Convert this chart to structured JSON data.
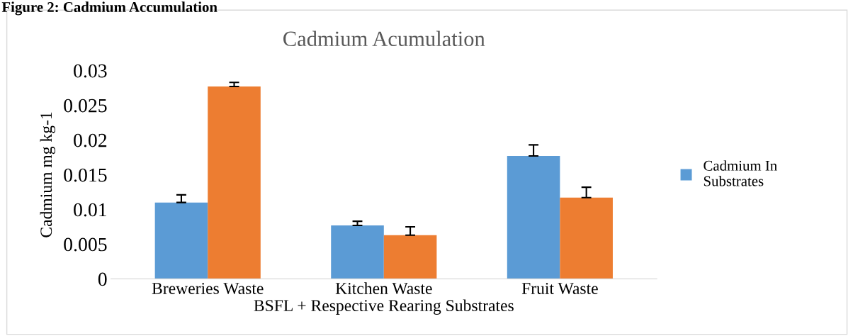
{
  "chart_data": {
    "type": "bar",
    "title": "Cadmium Acumulation",
    "xlabel": "BSFL + Respective Rearing Substrates",
    "ylabel": "Cadmium mg kg-1",
    "annotations": [
      "Figure 2: Cadmium Accumulation"
    ],
    "categories": [
      "Breweries Waste",
      "Kitchen Waste",
      "Fruit Waste"
    ],
    "series": [
      {
        "name": "Cadmium In Substrates",
        "color": "#5b9bd5",
        "values": [
          0.011,
          0.0077,
          0.0177
        ],
        "errors": [
          [
            0.011,
            0.0121
          ],
          [
            0.0077,
            0.0083
          ],
          [
            0.0177,
            0.0193
          ]
        ]
      },
      {
        "color": "#ed7d31",
        "values": [
          0.0277,
          0.0063,
          0.0117
        ],
        "errors": [
          [
            0.0277,
            0.0283
          ],
          [
            0.0063,
            0.0075
          ],
          [
            0.0117,
            0.0132
          ]
        ]
      }
    ],
    "ylim": [
      0,
      0.03
    ],
    "yticks": [
      {
        "value": 0,
        "label": "0"
      },
      0.005,
      0.01,
      0.015,
      0.02,
      0.025,
      0.03
    ],
    "legend": "right"
  }
}
